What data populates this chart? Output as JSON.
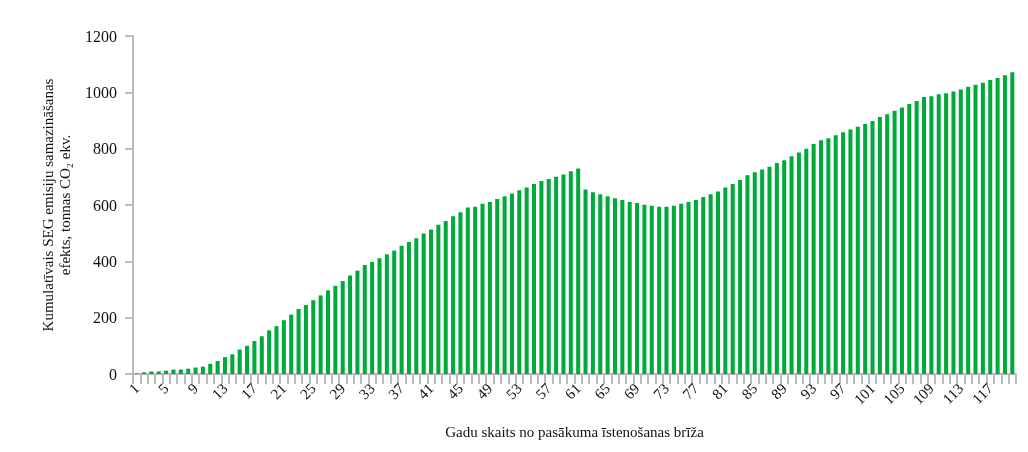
{
  "chart_data": {
    "type": "bar",
    "ylabel": "Kumulatīvais SEG emisiju samazināšanas\nefekts, tonnas CO₂ ekv.",
    "xlabel": "Gadu skaits no pasākuma īstenošanas brīža",
    "categories": [
      "1",
      null,
      null,
      null,
      "5",
      null,
      null,
      null,
      "9",
      null,
      null,
      null,
      "13",
      null,
      null,
      null,
      "17",
      null,
      null,
      null,
      "21",
      null,
      null,
      null,
      "25",
      null,
      null,
      null,
      "29",
      null,
      null,
      null,
      "33",
      null,
      null,
      null,
      "37",
      null,
      null,
      null,
      "41",
      null,
      null,
      null,
      "45",
      null,
      null,
      null,
      "49",
      null,
      null,
      null,
      "53",
      null,
      null,
      null,
      "57",
      null,
      null,
      null,
      "61",
      null,
      null,
      null,
      "65",
      null,
      null,
      null,
      "69",
      null,
      null,
      null,
      "73",
      null,
      null,
      null,
      "77",
      null,
      null,
      null,
      "81",
      null,
      null,
      null,
      "85",
      null,
      null,
      null,
      "89",
      null,
      null,
      null,
      "93",
      null,
      null,
      null,
      "97",
      null,
      null,
      null,
      "101",
      null,
      null,
      null,
      "105",
      null,
      null,
      null,
      "109",
      null,
      null,
      null,
      "113",
      null,
      null,
      null,
      "117",
      null,
      null,
      null
    ],
    "values": [
      2,
      6,
      9,
      9,
      12,
      16,
      16,
      19,
      23,
      26,
      36,
      46,
      60,
      70,
      87,
      100,
      117,
      134,
      155,
      170,
      191,
      211,
      231,
      245,
      262,
      279,
      297,
      313,
      330,
      350,
      367,
      387,
      398,
      411,
      425,
      438,
      455,
      469,
      482,
      499,
      513,
      530,
      543,
      560,
      574,
      591,
      594,
      604,
      611,
      621,
      631,
      641,
      652,
      662,
      675,
      685,
      692,
      700,
      708,
      720,
      730,
      655,
      645,
      638,
      631,
      624,
      618,
      611,
      607,
      601,
      597,
      594,
      594,
      597,
      604,
      611,
      618,
      628,
      638,
      648,
      662,
      675,
      689,
      706,
      716,
      726,
      736,
      749,
      759,
      773,
      786,
      800,
      817,
      830,
      837,
      848,
      858,
      868,
      878,
      888,
      898,
      912,
      922,
      935,
      946,
      959,
      969,
      983,
      986,
      993,
      997,
      1003,
      1010,
      1020,
      1027,
      1034,
      1044,
      1051,
      1061,
      1071
    ],
    "color": "#00aa3a",
    "ylim": [
      0,
      1200
    ],
    "yticks": [
      0,
      200,
      400,
      600,
      800,
      1000,
      1200
    ],
    "grid": false
  }
}
